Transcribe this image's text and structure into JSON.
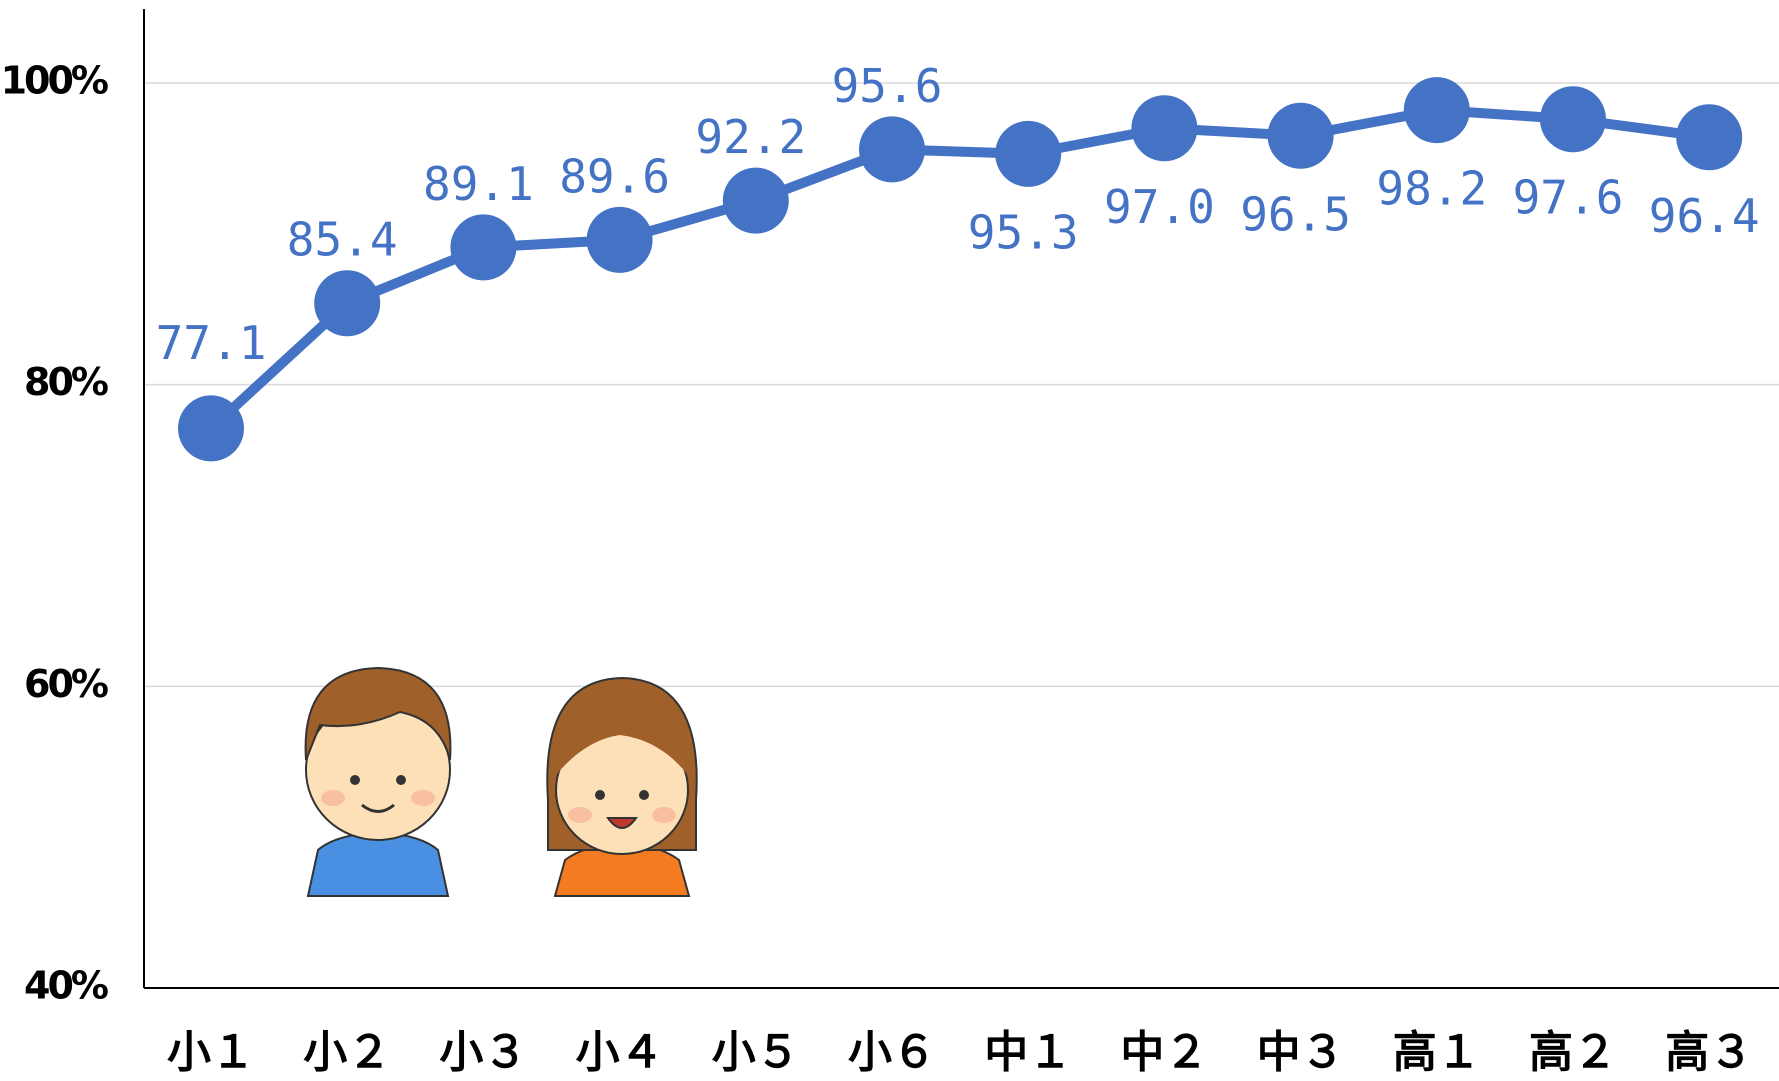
{
  "chart_data": {
    "type": "line",
    "categories": [
      "小１",
      "小２",
      "小３",
      "小４",
      "小５",
      "小６",
      "中１",
      "中２",
      "中３",
      "高１",
      "高２",
      "高３"
    ],
    "series": [
      {
        "color": "#4472c4",
        "values": [
          77.1,
          85.4,
          89.1,
          89.6,
          92.2,
          95.6,
          95.3,
          97.0,
          96.5,
          98.2,
          97.6,
          96.4
        ],
        "value_labels": [
          "77.1",
          "85.4",
          "89.1",
          "89.6",
          "92.2",
          "95.6",
          "95.3",
          "97.0",
          "96.5",
          "98.2",
          "97.6",
          "96.4"
        ]
      }
    ],
    "ylim": [
      40,
      100
    ],
    "yticks": [
      {
        "value": 40,
        "label": "40%"
      },
      {
        "value": 60,
        "label": "60%"
      },
      {
        "value": 80,
        "label": "80%"
      },
      {
        "value": 100,
        "label": "100%"
      }
    ],
    "grid": true
  }
}
